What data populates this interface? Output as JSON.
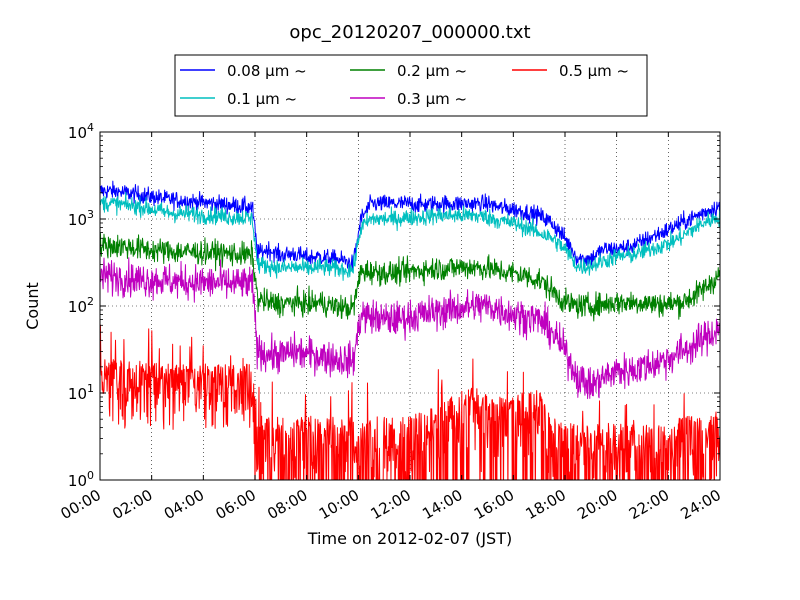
{
  "chart_data": {
    "type": "line",
    "title": "opc_20120207_000000.txt",
    "xlabel": "Time on 2012-02-07 (JST)",
    "ylabel": "Count",
    "y_scale": "log",
    "ylim": [
      1,
      10000
    ],
    "xlim": [
      "00:00",
      "24:00"
    ],
    "grid": true,
    "legend_placement": "top-center, above plot",
    "x_ticks": [
      "00:00",
      "02:00",
      "04:00",
      "06:00",
      "08:00",
      "10:00",
      "12:00",
      "14:00",
      "16:00",
      "18:00",
      "20:00",
      "22:00",
      "24:00"
    ],
    "y_ticks": [
      {
        "value": 1,
        "base": "10",
        "exp": "0"
      },
      {
        "value": 10,
        "base": "10",
        "exp": "1"
      },
      {
        "value": 100,
        "base": "10",
        "exp": "2"
      },
      {
        "value": 1000,
        "base": "10",
        "exp": "3"
      },
      {
        "value": 10000,
        "base": "10",
        "exp": "4"
      }
    ],
    "x_hours": [
      0,
      0.5,
      1,
      1.5,
      2,
      2.5,
      3,
      3.5,
      4,
      4.5,
      5,
      5.5,
      5.9,
      6.1,
      6.5,
      7,
      7.5,
      8,
      8.5,
      9,
      9.5,
      9.8,
      10.1,
      10.5,
      11,
      11.5,
      12,
      12.5,
      13,
      13.5,
      14,
      14.5,
      15,
      15.5,
      16,
      16.5,
      17,
      17.5,
      18,
      18.5,
      19,
      19.5,
      20,
      20.5,
      21,
      21.5,
      22,
      22.5,
      23,
      23.5,
      24
    ],
    "series": [
      {
        "name": "0.08 μm ~",
        "color": "#0000ff",
        "noise": 0.05,
        "values": [
          2100,
          2100,
          2000,
          1900,
          1800,
          1700,
          1650,
          1600,
          1550,
          1500,
          1450,
          1400,
          1350,
          400,
          450,
          380,
          400,
          360,
          370,
          350,
          330,
          300,
          1000,
          1500,
          1500,
          1500,
          1500,
          1450,
          1500,
          1500,
          1500,
          1500,
          1500,
          1350,
          1300,
          1200,
          1100,
          900,
          600,
          350,
          350,
          450,
          450,
          480,
          550,
          650,
          750,
          900,
          1050,
          1250,
          1400
        ]
      },
      {
        "name": "0.1 μm ~",
        "color": "#00bfbf",
        "noise": 0.05,
        "values": [
          1550,
          1500,
          1450,
          1400,
          1300,
          1200,
          1150,
          1150,
          1100,
          1100,
          1050,
          1050,
          1000,
          300,
          290,
          270,
          280,
          270,
          280,
          270,
          260,
          260,
          800,
          1000,
          1000,
          1000,
          1050,
          1050,
          1100,
          1100,
          1100,
          1100,
          1050,
          950,
          900,
          800,
          700,
          600,
          450,
          280,
          290,
          330,
          370,
          380,
          420,
          470,
          520,
          620,
          780,
          950,
          1050
        ]
      },
      {
        "name": "0.2 μm ~",
        "color": "#008000",
        "noise": 0.07,
        "values": [
          500,
          490,
          480,
          460,
          440,
          430,
          420,
          420,
          410,
          410,
          400,
          390,
          380,
          120,
          110,
          105,
          110,
          105,
          110,
          100,
          95,
          95,
          250,
          250,
          240,
          240,
          250,
          260,
          270,
          270,
          280,
          280,
          270,
          250,
          240,
          220,
          200,
          150,
          110,
          100,
          100,
          105,
          110,
          110,
          110,
          105,
          105,
          110,
          130,
          170,
          230
        ]
      },
      {
        "name": "0.3 μm ~",
        "color": "#bf00bf",
        "noise": 0.1,
        "values": [
          220,
          220,
          210,
          200,
          200,
          195,
          190,
          190,
          185,
          185,
          180,
          180,
          175,
          30,
          28,
          27,
          30,
          28,
          27,
          25,
          24,
          23,
          80,
          75,
          70,
          70,
          75,
          80,
          85,
          90,
          95,
          100,
          100,
          90,
          80,
          75,
          70,
          50,
          30,
          15,
          12,
          15,
          18,
          18,
          20,
          22,
          25,
          30,
          35,
          45,
          55
        ]
      },
      {
        "name": "0.5 μm ~",
        "color": "#ff0000",
        "noise": 0.4,
        "values": [
          14,
          14,
          13,
          13,
          13,
          12,
          12,
          12,
          12,
          12,
          12,
          12,
          12,
          3,
          3,
          3,
          3,
          3,
          3,
          3,
          3,
          3,
          3,
          3,
          3,
          3,
          3,
          3.5,
          4,
          5,
          6,
          6.5,
          6,
          5,
          5,
          6,
          6,
          3,
          2.5,
          2.5,
          2.5,
          2.5,
          2.5,
          2.5,
          2.5,
          2.5,
          2.5,
          3,
          3,
          3,
          3
        ]
      }
    ]
  }
}
